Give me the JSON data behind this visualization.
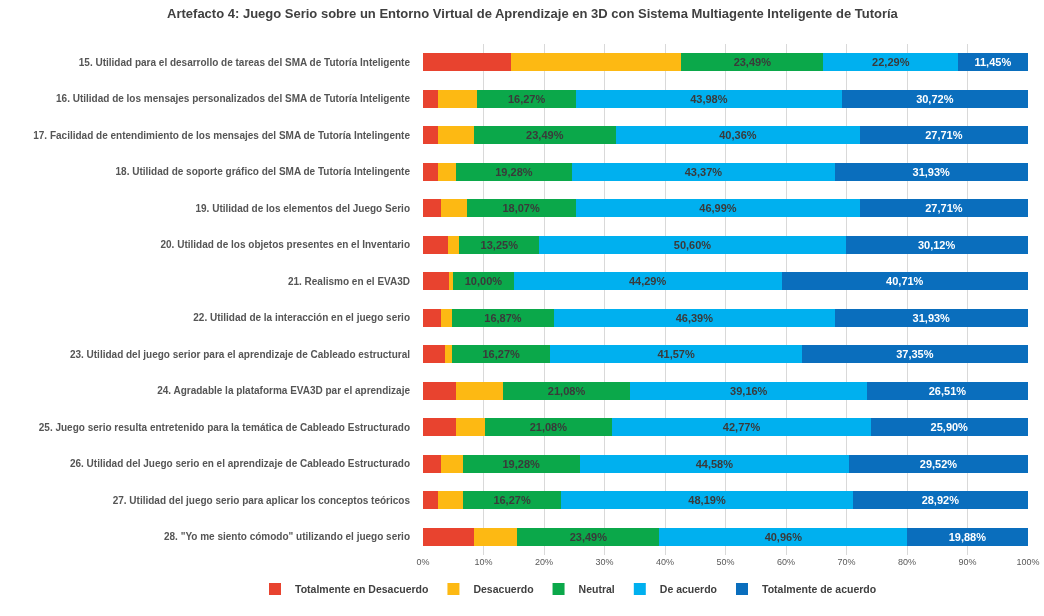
{
  "chart_data": {
    "type": "bar",
    "orientation": "horizontal",
    "stacked": true,
    "title": "Artefacto 4: Juego Serio sobre un Entorno Virtual de Aprendizaje en 3D con Sistema Multiagente Inteligente de Tutoría",
    "categories": [
      "15. Utilidad para el desarrollo de tareas del SMA de Tutoría Inteligente",
      "16. Utilidad de los mensajes personalizados del SMA de Tutoría Inteligente",
      "17. Facilidad de entendimiento de los mensajes del SMA de Tutoría Intelingente",
      "18. Utilidad de soporte gráfico del SMA de Tutoría Intelingente",
      "19. Utilidad de los elementos del Juego Serio",
      "20. Utilidad de los objetos presentes en el Inventario",
      "21. Realismo en el EVA3D",
      "22. Utilidad de la interacción en el juego serio",
      "23. Utilidad del juego serior para el aprendizaje de Cableado estructural",
      "24. Agradable la plataforma EVA3D par el aprendizaje",
      "25. Juego serio resulta entretenido para la temática de Cableado Estructurado",
      "26. Utilidad del Juego serio en el aprendizaje de Cableado Estructurado",
      "27. Utilidad del juego serio para aplicar los conceptos teóricos",
      "28. \"Yo me siento cómodo\" utilizando el juego serio"
    ],
    "series": [
      {
        "name": "Totalmente en Desacuerdo",
        "color": "#e8432f",
        "values": [
          14.5,
          2.4,
          2.4,
          2.4,
          3.0,
          4.2,
          4.3,
          3.0,
          3.6,
          5.4,
          5.4,
          3.0,
          2.4,
          8.4
        ]
      },
      {
        "name": "Desacuerdo",
        "color": "#fdb913",
        "values": [
          28.2,
          6.6,
          6.0,
          3.0,
          4.2,
          1.8,
          0.7,
          1.8,
          1.2,
          7.8,
          4.8,
          3.6,
          4.2,
          7.2
        ]
      },
      {
        "name": "Neutral",
        "color": "#0ba84a",
        "values": [
          23.49,
          16.27,
          23.49,
          19.28,
          18.07,
          13.25,
          10.0,
          16.87,
          16.27,
          21.08,
          21.08,
          19.28,
          16.27,
          23.49
        ],
        "value_labels": [
          "23,49%",
          "16,27%",
          "23,49%",
          "19,28%",
          "18,07%",
          "13,25%",
          "10,00%",
          "16,87%",
          "16,27%",
          "21,08%",
          "21,08%",
          "19,28%",
          "16,27%",
          "23,49%"
        ]
      },
      {
        "name": "De acuerdo",
        "color": "#00b0ef",
        "values": [
          22.29,
          43.98,
          40.36,
          43.37,
          46.99,
          50.6,
          44.29,
          46.39,
          41.57,
          39.16,
          42.77,
          44.58,
          48.19,
          40.96
        ],
        "value_labels": [
          "22,29%",
          "43,98%",
          "40,36%",
          "43,37%",
          "46,99%",
          "50,60%",
          "44,29%",
          "46,39%",
          "41,57%",
          "39,16%",
          "42,77%",
          "44,58%",
          "48,19%",
          "40,96%"
        ]
      },
      {
        "name": "Totalmente de acuerdo",
        "color": "#0a6ebd",
        "values": [
          11.45,
          30.72,
          27.71,
          31.93,
          27.71,
          30.12,
          40.71,
          31.93,
          37.35,
          26.51,
          25.9,
          29.52,
          28.92,
          19.88
        ],
        "value_labels": [
          "11,45%",
          "30,72%",
          "27,71%",
          "31,93%",
          "27,71%",
          "30,12%",
          "40,71%",
          "31,93%",
          "37,35%",
          "26,51%",
          "25,90%",
          "29,52%",
          "28,92%",
          "19,88%"
        ]
      }
    ],
    "xlim": [
      0,
      100
    ],
    "xticks": [
      {
        "value": 0,
        "label": "0%"
      },
      {
        "value": 10,
        "label": "10%"
      },
      {
        "value": 20,
        "label": "20%"
      },
      {
        "value": 30,
        "label": "30%"
      },
      {
        "value": 40,
        "label": "40%"
      },
      {
        "value": 50,
        "label": "50%"
      },
      {
        "value": 60,
        "label": "60%"
      },
      {
        "value": 70,
        "label": "70%"
      },
      {
        "value": 80,
        "label": "80%"
      },
      {
        "value": 90,
        "label": "90%"
      },
      {
        "value": 100,
        "label": "100%"
      }
    ],
    "grid": "x",
    "legend": "bottom"
  }
}
